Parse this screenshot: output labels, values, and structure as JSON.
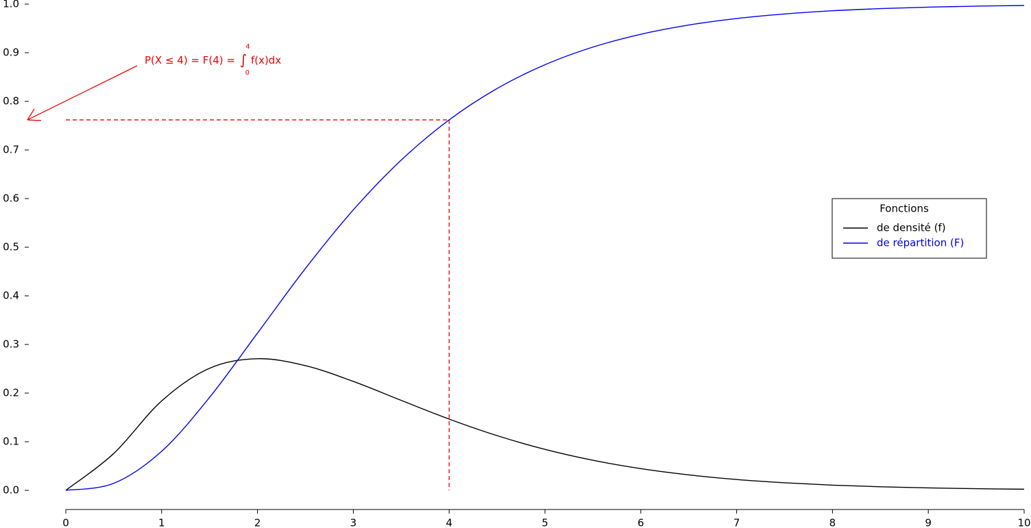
{
  "chart_data": {
    "type": "line",
    "x": [
      0,
      0.5,
      1,
      1.5,
      2,
      2.5,
      3,
      3.5,
      4,
      4.5,
      5,
      5.5,
      6,
      6.5,
      7,
      7.5,
      8,
      8.5,
      9,
      9.5,
      10
    ],
    "series": [
      {
        "name": "de densité (f)",
        "color": "#000000",
        "values": [
          0,
          0.0758,
          0.1839,
          0.251,
          0.2707,
          0.2565,
          0.224,
          0.185,
          0.1465,
          0.1125,
          0.0842,
          0.0618,
          0.0446,
          0.0318,
          0.0223,
          0.0156,
          0.0107,
          0.0073,
          0.005,
          0.0034,
          0.0023
        ]
      },
      {
        "name": "de répartition (F)",
        "color": "#0000ee",
        "values": [
          0,
          0.0144,
          0.0803,
          0.1912,
          0.3233,
          0.4562,
          0.5768,
          0.6792,
          0.7619,
          0.8264,
          0.8753,
          0.9116,
          0.938,
          0.957,
          0.9704,
          0.9797,
          0.9863,
          0.9907,
          0.9938,
          0.9958,
          0.9972
        ]
      }
    ],
    "legend_title": "Fonctions",
    "legend": "right",
    "annotation": {
      "lhs": "P(X ≤ 4) = F(4) = ",
      "integral": "∫",
      "lower": "0",
      "upper": "4",
      "integrand": "f(x)dx",
      "color": "#ee0000"
    },
    "xlim": [
      0,
      10
    ],
    "xticks": [
      0,
      1,
      2,
      3,
      4,
      5,
      6,
      7,
      8,
      9,
      10
    ],
    "ylim": [
      0,
      1
    ],
    "yticks": [
      {
        "value": 0,
        "label": "0.0"
      },
      0.1,
      0.2,
      0.3,
      0.4,
      0.5,
      0.6,
      0.7,
      0.8,
      0.9,
      {
        "value": 1,
        "label": "1.0"
      }
    ],
    "grid": false
  }
}
